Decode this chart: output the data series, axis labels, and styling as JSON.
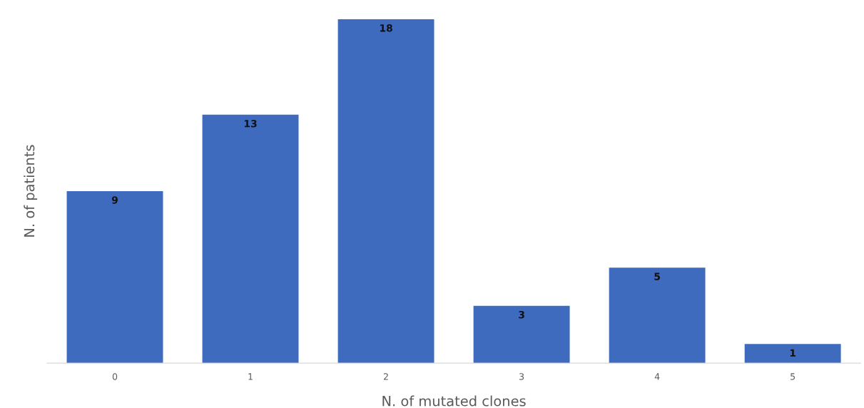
{
  "chart_data": {
    "type": "bar",
    "xlabel": "N. of mutated clones",
    "ylabel": "N. of patients",
    "categories": [
      "0",
      "1",
      "2",
      "3",
      "4",
      "5"
    ],
    "values": [
      9,
      13,
      18,
      3,
      5,
      1
    ],
    "color": "#3f6bbf",
    "data_labels": true,
    "grid": false
  }
}
